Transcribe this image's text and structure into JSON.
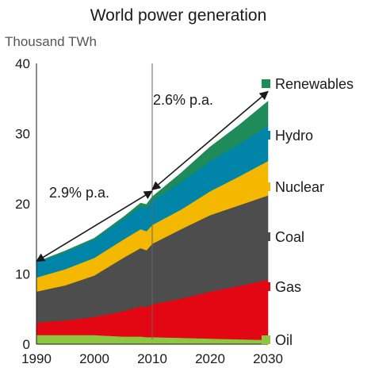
{
  "chart_data": {
    "type": "area",
    "title": "World power generation",
    "ylabel": "Thousand TWh",
    "xlabel": "",
    "x": [
      1990,
      1995,
      2000,
      2005,
      2008,
      2009,
      2010,
      2015,
      2020,
      2025,
      2030
    ],
    "xlim": [
      1990,
      2030
    ],
    "ylim": [
      0,
      40
    ],
    "x_ticks": [
      "1990",
      "2000",
      "2010",
      "2020",
      "2030"
    ],
    "y_ticks": [
      "0",
      "10",
      "20",
      "30",
      "40"
    ],
    "stacked": true,
    "grid": false,
    "legend_position": "right",
    "divider_year": 2010,
    "series": [
      {
        "name": "Oil",
        "color": "#8dc63f",
        "values": [
          1.3,
          1.3,
          1.3,
          1.1,
          1.1,
          1.0,
          1.0,
          0.9,
          0.8,
          0.7,
          0.6
        ]
      },
      {
        "name": "Gas",
        "color": "#e30613",
        "values": [
          1.8,
          2.1,
          2.6,
          3.6,
          4.3,
          4.3,
          4.7,
          5.6,
          6.7,
          7.6,
          8.6
        ]
      },
      {
        "name": "Coal",
        "color": "#4d4d4d",
        "values": [
          4.4,
          5.0,
          5.9,
          7.6,
          8.3,
          8.1,
          8.6,
          9.9,
          10.9,
          11.5,
          12.0
        ]
      },
      {
        "name": "Nuclear",
        "color": "#f5b800",
        "values": [
          2.0,
          2.3,
          2.5,
          2.6,
          2.7,
          2.7,
          2.7,
          2.8,
          3.4,
          4.1,
          4.9
        ]
      },
      {
        "name": "Hydro",
        "color": "#0085a8",
        "values": [
          2.1,
          2.4,
          2.6,
          2.9,
          3.2,
          3.3,
          3.4,
          3.9,
          4.3,
          4.6,
          5.0
        ]
      },
      {
        "name": "Renewables",
        "color": "#1f8a5a",
        "values": [
          0.1,
          0.2,
          0.2,
          0.3,
          0.5,
          0.5,
          0.6,
          1.3,
          2.0,
          2.7,
          3.5
        ]
      }
    ],
    "annotations": [
      {
        "text": "2.9% p.a.",
        "from_x": 1990,
        "from_y": 11.8,
        "to_x": 2010,
        "to_y": 21.8
      },
      {
        "text": "2.6% p.a.",
        "from_x": 2010,
        "from_y": 22.0,
        "to_x": 2030,
        "to_y": 36.0
      }
    ]
  }
}
